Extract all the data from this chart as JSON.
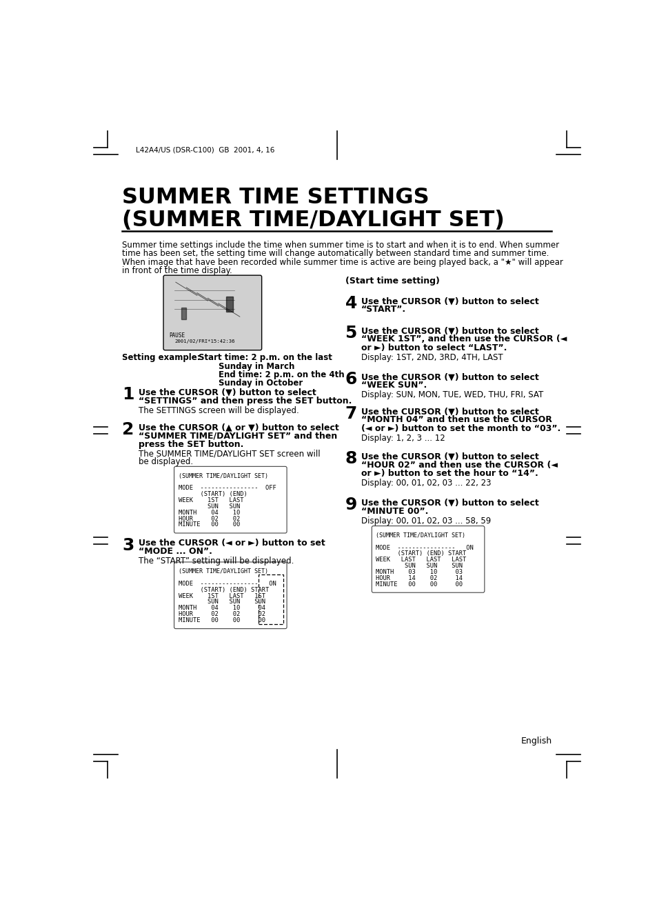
{
  "background_color": "#ffffff",
  "page_width": 9.54,
  "page_height": 13.05,
  "header_text": "L42A4/US (DSR-C100)  GB  2001, 4, 16",
  "title_line1": "SUMMER TIME SETTINGS",
  "title_line2": "(SUMMER TIME/DAYLIGHT SET)",
  "intro_text": "Summer time settings include the time when summer time is to start and when it is to end. When summer\ntime has been set, the setting time will change automatically between standard time and summer time.\nWhen image that have been recorded while summer time is active are being played back, a \"★\" will appear\nin front of the time display.",
  "start_time_label": "(Start time setting)",
  "footer_text": "English",
  "screen1_lines": [
    "(SUMMER TIME/DAYLIGHT SET)",
    "",
    "MODE  ----------------  OFF",
    "      (START) (END)",
    "WEEK    1ST   LAST",
    "        SUN   SUN",
    "MONTH    04    10",
    "HOUR     02    02",
    "MINUTE   00    00"
  ],
  "screen2_lines": [
    "(SUMMER TIME/DAYLIGHT SET)",
    "",
    "MODE  ----------------   ON",
    "      (START) (END) START",
    "WEEK    1ST   LAST   1ST",
    "        SUN   SUN    SUN",
    "MONTH    04    10     04",
    "HOUR     02    02     02",
    "MINUTE   00    00     00"
  ],
  "screen3_lines": [
    "(SUMMER TIME/DAYLIGHT SET)",
    "",
    "MODE  ----------------   ON",
    "      (START) (END) START",
    "WEEK   LAST   LAST   LAST",
    "        SUN   SUN    SUN",
    "MONTH    03    10     03",
    "HOUR     14    02     14",
    "MINUTE   00    00     00"
  ]
}
